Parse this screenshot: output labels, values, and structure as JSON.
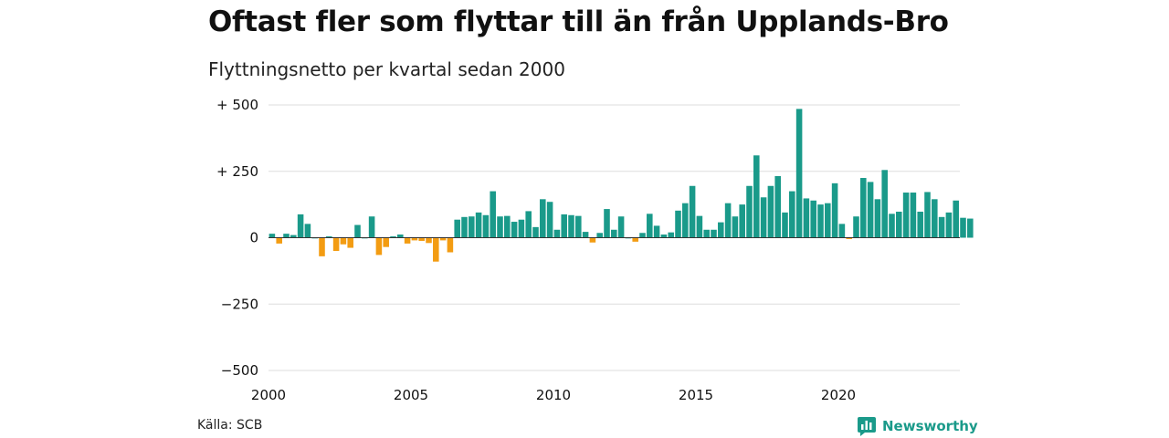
{
  "title": "Oftast fler som flyttar till än från Upplands-Bro",
  "subtitle": "Flyttningsnetto per kvartal sedan 2000",
  "source": "Källa: SCB",
  "brand": "Newsworthy",
  "colors": {
    "positive": "#1a9a8a",
    "negative": "#f39c12",
    "grid": "#dddddd",
    "text": "#111111"
  },
  "chart_data": {
    "type": "bar",
    "title": "Oftast fler som flyttar till än från Upplands-Bro",
    "subtitle": "Flyttningsnetto per kvartal sedan 2000",
    "xlabel": "",
    "ylabel": "",
    "ylim": [
      -500,
      500
    ],
    "yticks": [
      500,
      250,
      0,
      -250,
      -500
    ],
    "ytick_labels": [
      "+ 500",
      "+ 250",
      "0",
      "−250",
      "−500"
    ],
    "xticks": [
      2000,
      2005,
      2010,
      2015,
      2020
    ],
    "xtick_labels": [
      "2000",
      "2005",
      "2010",
      "2015",
      "2020"
    ],
    "x_start": 2000,
    "periods_per_year": 4,
    "grid": true,
    "values": [
      15,
      -22,
      15,
      10,
      88,
      52,
      0,
      -70,
      5,
      -50,
      -25,
      -38,
      48,
      0,
      80,
      -65,
      -35,
      5,
      12,
      -22,
      -10,
      -12,
      -20,
      -90,
      -10,
      -55,
      68,
      78,
      80,
      95,
      85,
      175,
      80,
      82,
      60,
      68,
      100,
      40,
      145,
      135,
      30,
      88,
      85,
      82,
      22,
      -18,
      18,
      108,
      30,
      80,
      0,
      -15,
      18,
      90,
      45,
      12,
      20,
      102,
      130,
      195,
      82,
      30,
      30,
      58,
      130,
      80,
      125,
      195,
      310,
      152,
      195,
      232,
      95,
      175,
      485,
      148,
      140,
      125,
      130,
      205,
      52,
      -5,
      80,
      225,
      210,
      145,
      255,
      90,
      98,
      170,
      170,
      98,
      172,
      145,
      78,
      95,
      140,
      75,
      72
    ]
  }
}
